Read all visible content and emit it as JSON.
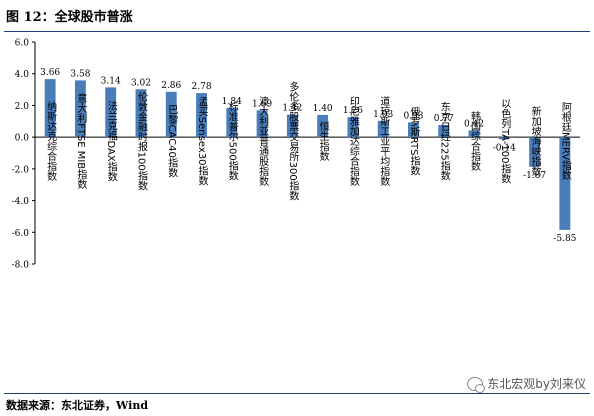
{
  "header": {
    "title": "图  12：全球股市普涨"
  },
  "footer": {
    "source": "数据来源：东北证券，Wind",
    "watermark": "东北宏观by刘来仪",
    "watermark_icon": "wechat-icon"
  },
  "colors": {
    "bar": "#4a7ebb",
    "title_rule": "#1f3f7a"
  },
  "chart_data": {
    "type": "bar",
    "categories": [
      "纳斯达克综合指数",
      "意大利FTSE MIB指数",
      "法兰克福DAX指数",
      "伦敦金融时报100指数",
      "巴黎CAC40指数",
      "孟买Sensex30指数",
      "标准普尔500指数",
      "澳大利亚普通股指数",
      "多伦多股票交易所300指数",
      "恒生指数",
      "印尼雅加达综合指数",
      "道琼斯工业平均指数",
      "俄罗斯RTS指数",
      "东京日经225指数",
      "韩国综合指数",
      "以色列TA-100指数",
      "新加坡海峡指数",
      "阿根廷MERV指数"
    ],
    "values": [
      3.66,
      3.58,
      3.14,
      3.02,
      2.86,
      2.78,
      1.84,
      1.69,
      1.42,
      1.4,
      1.26,
      1.03,
      0.93,
      0.77,
      0.42,
      -0.14,
      -1.87,
      -5.85
    ],
    "value_labels": [
      "3.66",
      "3.58",
      "3.14",
      "3.02",
      "2.86",
      "2.78",
      "1.84",
      "1.69",
      "1.42",
      "1.40",
      "1.26",
      "1.03",
      "0.93",
      "0.77",
      "0.42",
      "-0.14",
      "-1.87",
      "-5.85"
    ],
    "yticks": [
      "6.0",
      "4.0",
      "2.0",
      "0.0",
      "-2.0",
      "-4.0",
      "-6.0",
      "-8.0"
    ],
    "ylim": [
      -8,
      6
    ],
    "title": "",
    "xlabel": "",
    "ylabel": "",
    "grid": false,
    "legend": "none"
  }
}
